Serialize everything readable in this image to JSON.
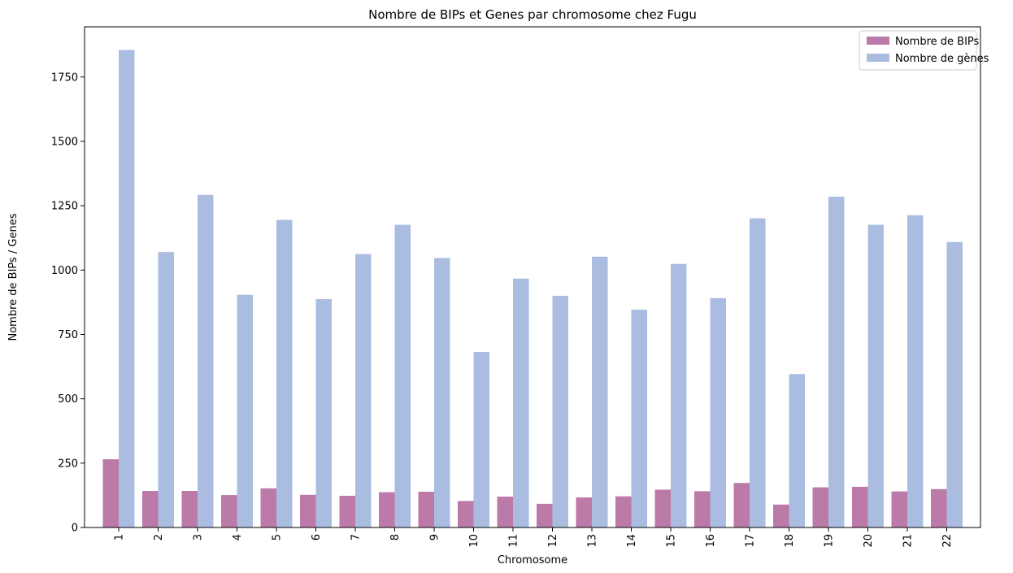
{
  "chart_data": {
    "type": "bar",
    "title": "Nombre de BIPs et Genes par chromosome chez Fugu",
    "xlabel": "Chromosome",
    "ylabel": "Nombre de BIPs / Genes",
    "ylim": [
      0,
      1945
    ],
    "yticks": [
      0,
      250,
      500,
      750,
      1000,
      1250,
      1500,
      1750
    ],
    "grid": false,
    "legend_position": "top-right",
    "categories": [
      "1",
      "2",
      "3",
      "4",
      "5",
      "6",
      "7",
      "8",
      "9",
      "10",
      "11",
      "12",
      "13",
      "14",
      "15",
      "16",
      "17",
      "18",
      "19",
      "20",
      "21",
      "22"
    ],
    "series": [
      {
        "name": "Nombre de BIPs",
        "color": "#bc7aa8",
        "values": [
          265,
          142,
          142,
          126,
          152,
          127,
          123,
          137,
          139,
          103,
          120,
          92,
          117,
          121,
          147,
          141,
          173,
          89,
          156,
          158,
          140,
          149
        ]
      },
      {
        "name": "Nombre de gènes",
        "color": "#aabce0",
        "values": [
          1855,
          1070,
          1292,
          904,
          1195,
          887,
          1062,
          1176,
          1047,
          682,
          967,
          900,
          1052,
          846,
          1024,
          891,
          1201,
          596,
          1285,
          1176,
          1213,
          1109
        ]
      }
    ]
  }
}
